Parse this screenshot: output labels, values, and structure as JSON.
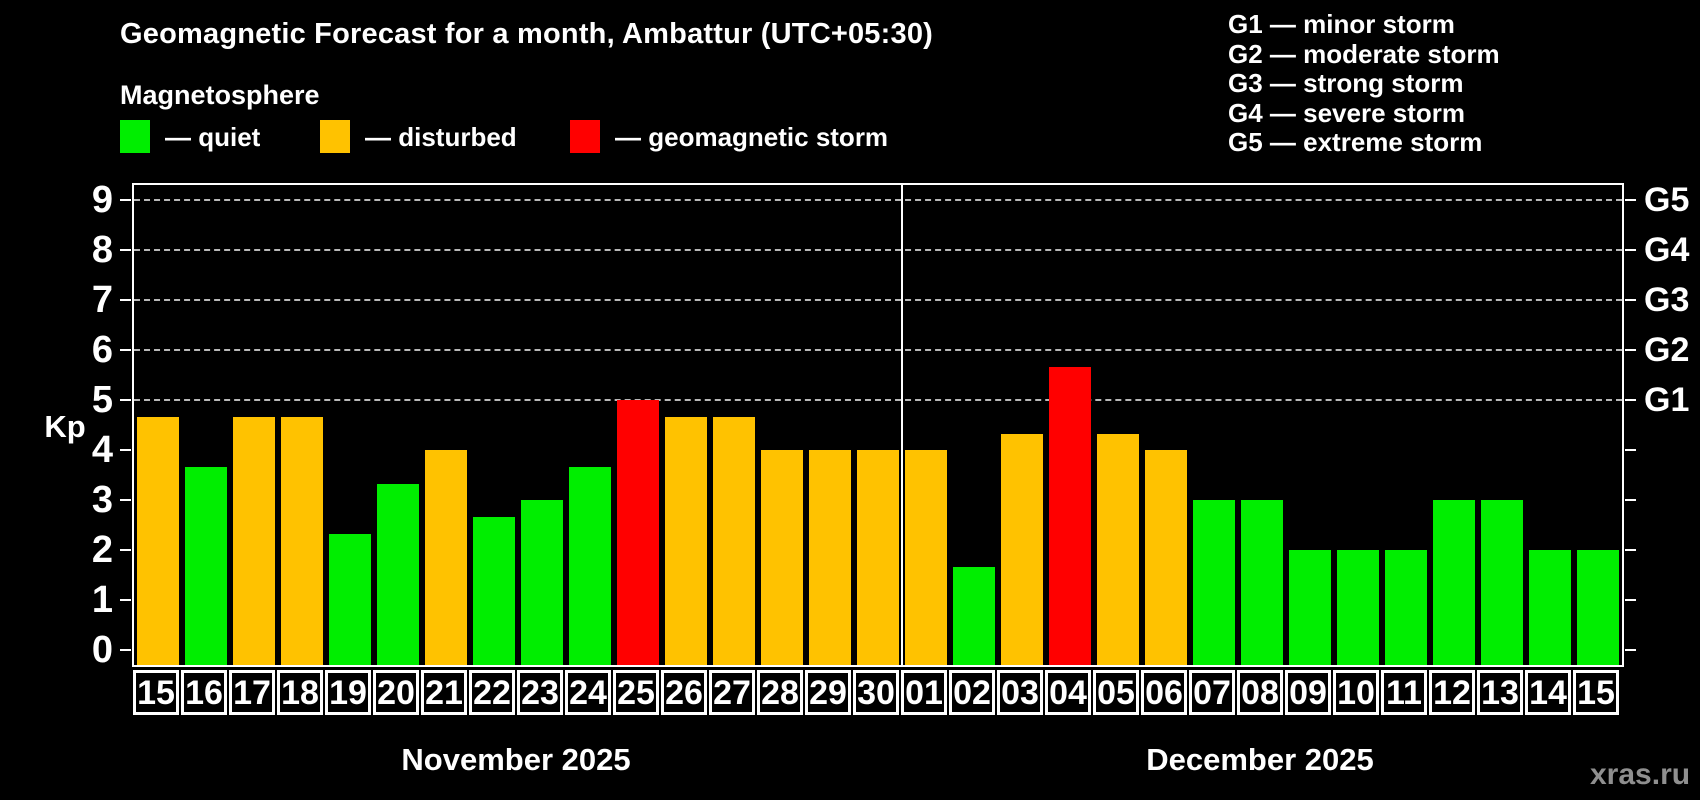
{
  "header": {
    "title": "Geomagnetic Forecast for a month, Ambattur (UTC+05:30)",
    "subtitle": "Magnetosphere"
  },
  "legend": {
    "items": [
      {
        "name": "quiet",
        "label": "— quiet",
        "color": "#00ee00"
      },
      {
        "name": "disturbed",
        "label": "— disturbed",
        "color": "#ffc200"
      },
      {
        "name": "storm",
        "label": "— geomagnetic storm",
        "color": "#ff0000"
      }
    ]
  },
  "g_legend": {
    "items": [
      "G1 — minor storm",
      "G2 — moderate storm",
      "G3 — strong storm",
      "G4 — severe storm",
      "G5 — extreme storm"
    ]
  },
  "watermark": "xras.ru",
  "chart_data": {
    "type": "bar",
    "title": "Geomagnetic Forecast for a month, Ambattur (UTC+05:30)",
    "ylabel": "Kp",
    "ylim": [
      0,
      9
    ],
    "yticks": [
      0,
      1,
      2,
      3,
      4,
      5,
      6,
      7,
      8,
      9
    ],
    "gridlines_at_kp": [
      5,
      6,
      7,
      8,
      9
    ],
    "grid": "dashed",
    "legend_position": "top",
    "right_axis_labels": [
      {
        "kp": 9,
        "label": "G5"
      },
      {
        "kp": 8,
        "label": "G4"
      },
      {
        "kp": 7,
        "label": "G3"
      },
      {
        "kp": 6,
        "label": "G2"
      },
      {
        "kp": 5,
        "label": "G1"
      }
    ],
    "colors": {
      "quiet": "#00ee00",
      "disturbed": "#ffc200",
      "storm": "#ff0000"
    },
    "months": [
      {
        "label": "November 2025",
        "days": [
          {
            "day": "15",
            "value": 4.67,
            "state": "disturbed"
          },
          {
            "day": "16",
            "value": 3.67,
            "state": "quiet"
          },
          {
            "day": "17",
            "value": 4.67,
            "state": "disturbed"
          },
          {
            "day": "18",
            "value": 4.67,
            "state": "disturbed"
          },
          {
            "day": "19",
            "value": 2.33,
            "state": "quiet"
          },
          {
            "day": "20",
            "value": 3.33,
            "state": "quiet"
          },
          {
            "day": "21",
            "value": 4,
            "state": "disturbed"
          },
          {
            "day": "22",
            "value": 2.67,
            "state": "quiet"
          },
          {
            "day": "23",
            "value": 3,
            "state": "quiet"
          },
          {
            "day": "24",
            "value": 3.67,
            "state": "quiet"
          },
          {
            "day": "25",
            "value": 5,
            "state": "storm"
          },
          {
            "day": "26",
            "value": 4.67,
            "state": "disturbed"
          },
          {
            "day": "27",
            "value": 4.67,
            "state": "disturbed"
          },
          {
            "day": "28",
            "value": 4,
            "state": "disturbed"
          },
          {
            "day": "29",
            "value": 4,
            "state": "disturbed"
          },
          {
            "day": "30",
            "value": 4,
            "state": "disturbed"
          }
        ]
      },
      {
        "label": "December 2025",
        "days": [
          {
            "day": "01",
            "value": 4,
            "state": "disturbed"
          },
          {
            "day": "02",
            "value": 1.67,
            "state": "quiet"
          },
          {
            "day": "03",
            "value": 4.33,
            "state": "disturbed"
          },
          {
            "day": "04",
            "value": 5.67,
            "state": "storm"
          },
          {
            "day": "05",
            "value": 4.33,
            "state": "disturbed"
          },
          {
            "day": "06",
            "value": 4,
            "state": "disturbed"
          },
          {
            "day": "07",
            "value": 3,
            "state": "quiet"
          },
          {
            "day": "08",
            "value": 3,
            "state": "quiet"
          },
          {
            "day": "09",
            "value": 2,
            "state": "quiet"
          },
          {
            "day": "10",
            "value": 2,
            "state": "quiet"
          },
          {
            "day": "11",
            "value": 2,
            "state": "quiet"
          },
          {
            "day": "12",
            "value": 3,
            "state": "quiet"
          },
          {
            "day": "13",
            "value": 3,
            "state": "quiet"
          },
          {
            "day": "14",
            "value": 2,
            "state": "quiet"
          },
          {
            "day": "15",
            "value": 2,
            "state": "quiet"
          }
        ]
      }
    ]
  }
}
